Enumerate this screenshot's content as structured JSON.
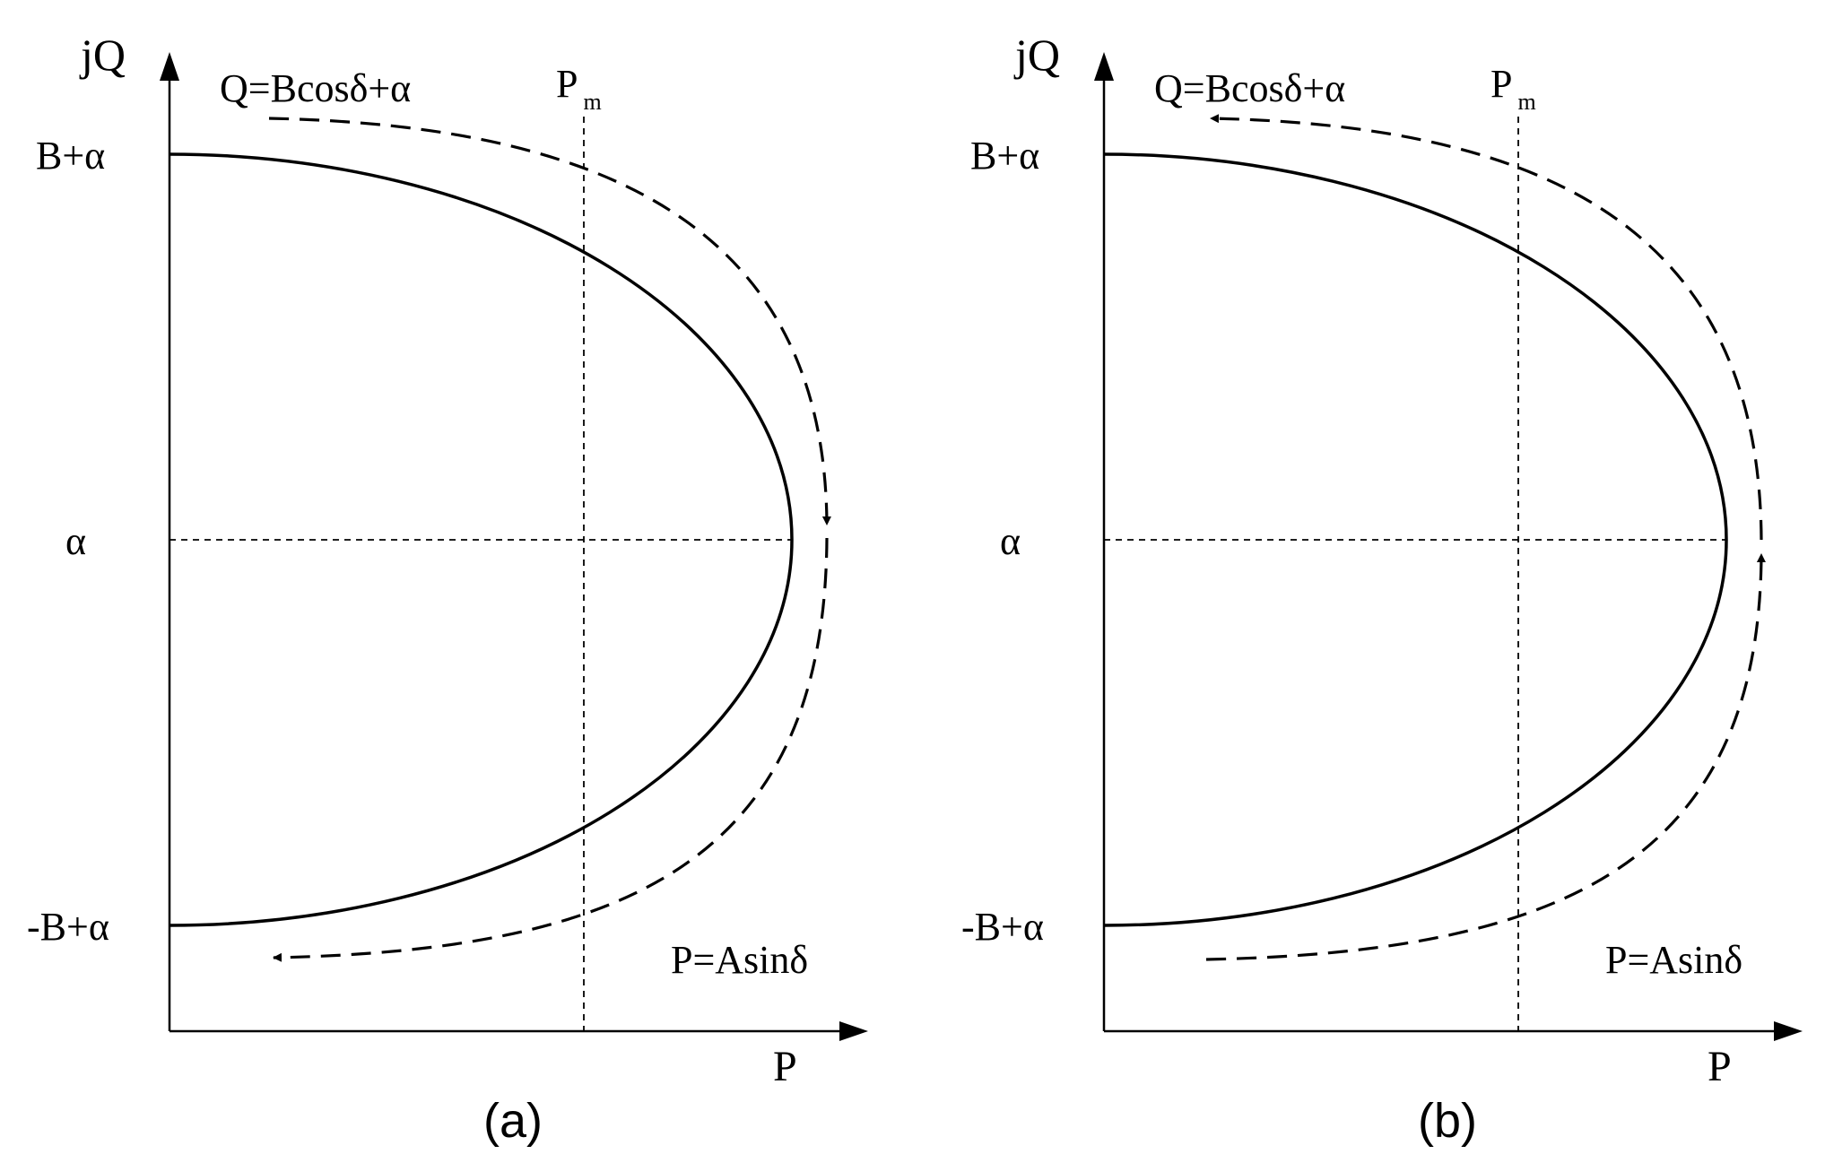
{
  "panels": [
    {
      "caption": "(a)",
      "y_axis_label": "jQ",
      "x_axis_label": "P",
      "q_equation": "Q=Bcosδ+α",
      "p_equation": "P=Asinδ",
      "pm_label_main": "P",
      "pm_label_sub": "m",
      "tick_top": "B+α",
      "tick_mid": "α",
      "tick_bottom": "-B+α",
      "trajectory_direction": "clockwise"
    },
    {
      "caption": "(b)",
      "y_axis_label": "jQ",
      "x_axis_label": "P",
      "q_equation": "Q=Bcosδ+α",
      "p_equation": "P=Asinδ",
      "pm_label_main": "P",
      "pm_label_sub": "m",
      "tick_top": "B+α",
      "tick_mid": "α",
      "tick_bottom": "-B+α",
      "trajectory_direction": "counterclockwise"
    }
  ]
}
